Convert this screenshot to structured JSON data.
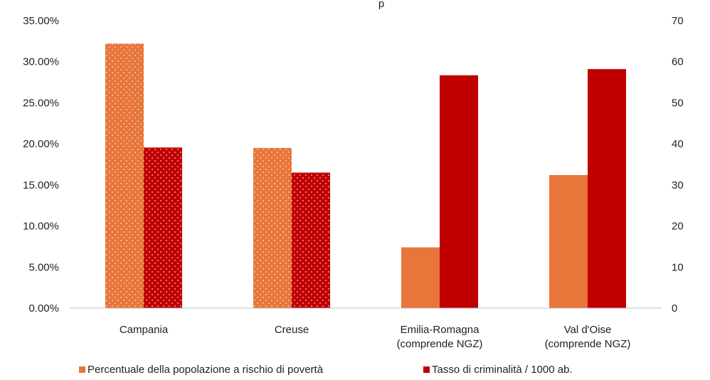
{
  "chart_data": {
    "type": "bar",
    "title_fragment": "p",
    "categories": [
      [
        "Campania"
      ],
      [
        "Creuse"
      ],
      [
        "Emilia-Romagna",
        "(comprende NGZ)"
      ],
      [
        "Val d'Oise",
        "(comprende NGZ)"
      ]
    ],
    "series": [
      {
        "name": "Percentuale della popolazione a rischio di povertà",
        "axis": "left",
        "values": [
          32.2,
          19.5,
          7.4,
          16.2
        ],
        "color": "#e8763a",
        "dotted": [
          true,
          true,
          false,
          false
        ]
      },
      {
        "name": "Tasso di criminalità / 1000 ab.",
        "axis": "right",
        "values": [
          39.1,
          33.0,
          56.7,
          58.2
        ],
        "color": "#c00000",
        "dotted": [
          true,
          true,
          false,
          false
        ]
      }
    ],
    "y_left": {
      "ylim": [
        0,
        35
      ],
      "ticks": [
        "0.00%",
        "5.00%",
        "10.00%",
        "15.00%",
        "20.00%",
        "25.00%",
        "30.00%",
        "35.00%"
      ]
    },
    "y_right": {
      "ylim": [
        0,
        70
      ],
      "ticks": [
        "0",
        "10",
        "20",
        "30",
        "40",
        "50",
        "60",
        "70"
      ]
    },
    "grid": false,
    "legend_position": "bottom"
  }
}
